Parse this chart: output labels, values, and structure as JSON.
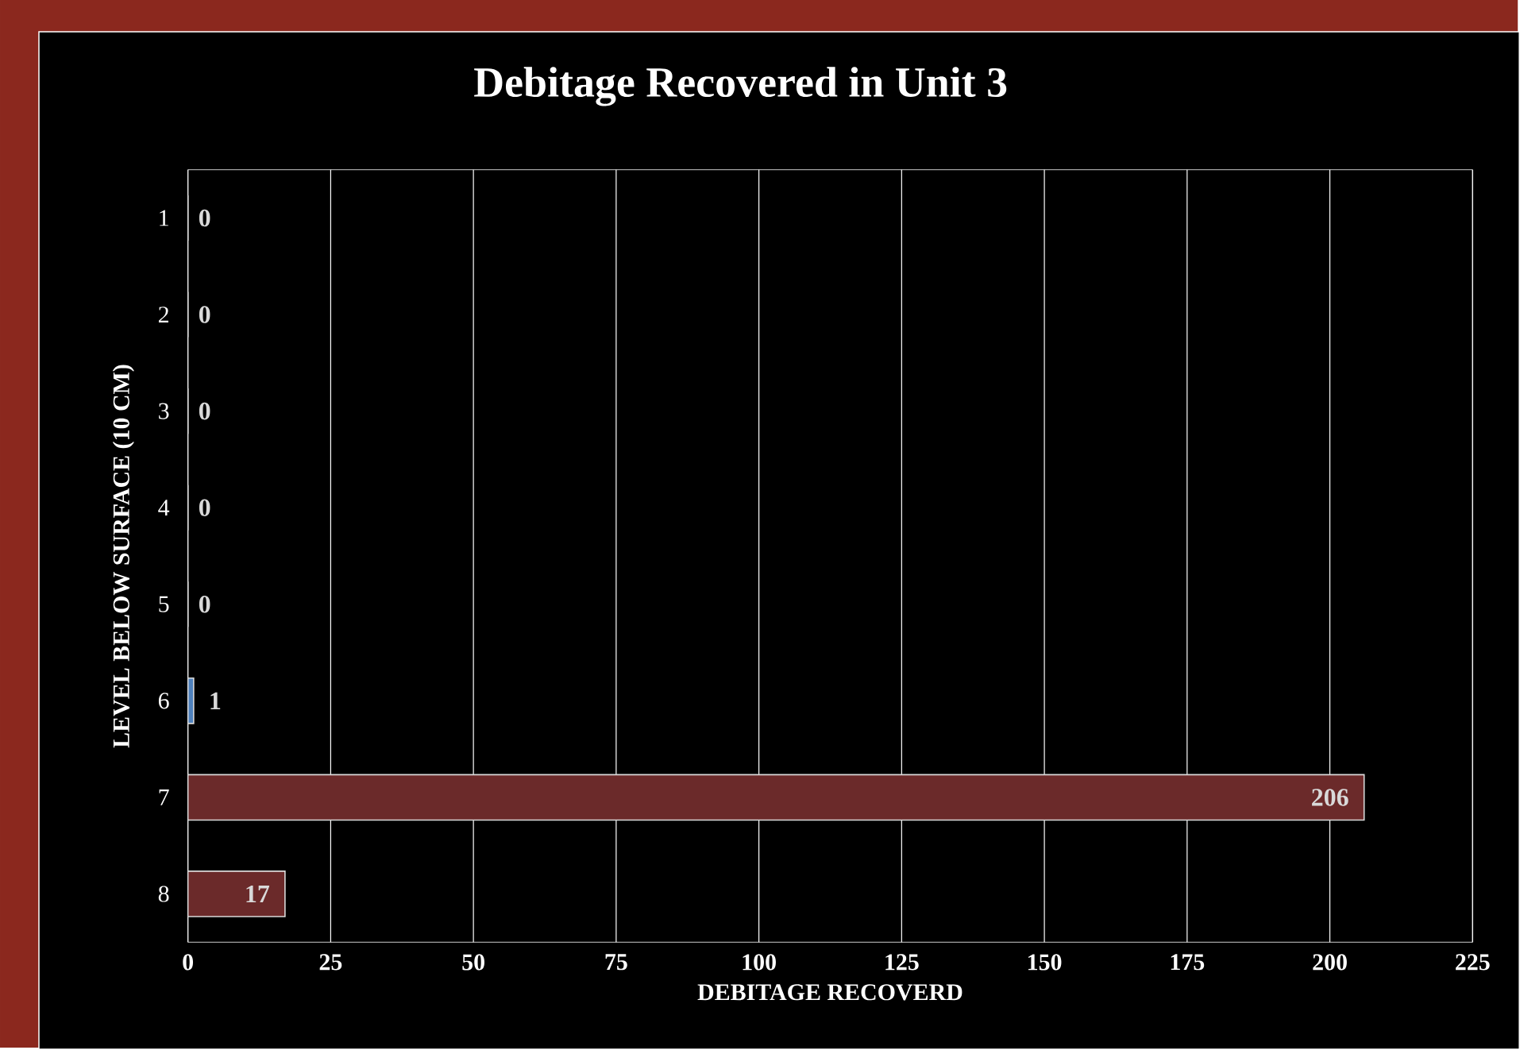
{
  "chart_data": {
    "type": "bar",
    "orientation": "horizontal",
    "title": "Debitage Recovered in Unit 3",
    "xlabel": "DEBITAGE RECOVERD",
    "ylabel": "LEVEL BELOW SURFACE (10 CM)",
    "categories": [
      "1",
      "2",
      "3",
      "4",
      "5",
      "6",
      "7",
      "8"
    ],
    "values": [
      0,
      0,
      0,
      0,
      0,
      1,
      206,
      17
    ],
    "colors": [
      "#6b2a2a",
      "#6b2a2a",
      "#6b2a2a",
      "#6b2a2a",
      "#6b2a2a",
      "#4f81bd",
      "#6b2a2a",
      "#6b2a2a"
    ],
    "xlim": [
      0,
      225
    ],
    "xticks": [
      0,
      25,
      50,
      75,
      100,
      125,
      150,
      175,
      200,
      225
    ],
    "grid": "x",
    "data_labels": true
  }
}
